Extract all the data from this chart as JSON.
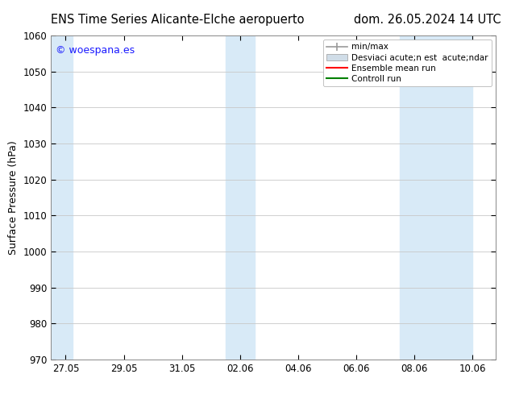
{
  "title_left": "ENS Time Series Alicante-Elche aeropuerto",
  "title_right": "dom. 26.05.2024 14 UTC",
  "ylabel": "Surface Pressure (hPa)",
  "ylim": [
    970,
    1060
  ],
  "yticks": [
    970,
    980,
    990,
    1000,
    1010,
    1020,
    1030,
    1040,
    1050,
    1060
  ],
  "xtick_labels": [
    "27.05",
    "29.05",
    "31.05",
    "02.06",
    "04.06",
    "06.06",
    "08.06",
    "10.06"
  ],
  "xtick_positions": [
    0,
    2,
    4,
    6,
    8,
    10,
    12,
    14
  ],
  "xlim": [
    -0.5,
    14.8
  ],
  "shaded_bands": [
    {
      "x_start": -0.5,
      "x_end": 0.25
    },
    {
      "x_start": 5.5,
      "x_end": 6.0
    },
    {
      "x_start": 6.0,
      "x_end": 6.5
    },
    {
      "x_start": 11.5,
      "x_end": 12.0
    },
    {
      "x_start": 12.0,
      "x_end": 14.0
    }
  ],
  "watermark_text": "© woespana.es",
  "watermark_color": "#1a1aff",
  "bg_color": "#ffffff",
  "plot_bg_color": "#ffffff",
  "shaded_color": "#d8eaf7",
  "grid_color": "#c8c8c8",
  "title_fontsize": 10.5,
  "label_fontsize": 9,
  "tick_fontsize": 8.5,
  "legend_fontsize": 7.5
}
